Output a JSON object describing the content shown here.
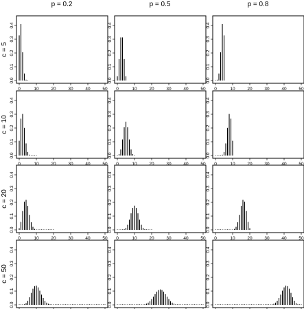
{
  "chart_data": {
    "type": "bar",
    "layout": "grid",
    "columns": [
      "p = 0.2",
      "p = 0.5",
      "p = 0.8"
    ],
    "rows": [
      "c = 5",
      "c = 10",
      "c = 20",
      "c = 50"
    ],
    "p_values": [
      0.2,
      0.5,
      0.8
    ],
    "c_values": [
      5,
      10,
      20,
      50
    ],
    "x_range": [
      0,
      50
    ],
    "y_range": [
      0,
      0.45
    ],
    "x_ticks": [
      0,
      10,
      20,
      30,
      40,
      50
    ],
    "y_ticks": [
      0,
      0.1,
      0.2,
      0.3,
      0.4
    ],
    "x_tick_labels": [
      "0",
      "10",
      "20",
      "30",
      "40",
      "50"
    ],
    "y_tick_labels": [
      "0.0",
      "0.1",
      "0.2",
      "0.3",
      "0.4"
    ],
    "panels": [
      {
        "c": 5,
        "p": 0.2,
        "x": [
          0,
          1,
          2,
          3,
          4,
          5
        ],
        "y": [
          0.328,
          0.41,
          0.205,
          0.051,
          0.006,
          0.0
        ]
      },
      {
        "c": 5,
        "p": 0.5,
        "x": [
          0,
          1,
          2,
          3,
          4,
          5
        ],
        "y": [
          0.031,
          0.156,
          0.313,
          0.313,
          0.156,
          0.031
        ]
      },
      {
        "c": 5,
        "p": 0.8,
        "x": [
          0,
          1,
          2,
          3,
          4,
          5
        ],
        "y": [
          0.0,
          0.006,
          0.051,
          0.205,
          0.41,
          0.328
        ]
      },
      {
        "c": 10,
        "p": 0.2,
        "x": [
          0,
          1,
          2,
          3,
          4,
          5,
          6,
          7,
          8,
          9,
          10
        ],
        "y": [
          0.107,
          0.268,
          0.302,
          0.201,
          0.088,
          0.026,
          0.006,
          0.001,
          0.0,
          0.0,
          0.0
        ]
      },
      {
        "c": 10,
        "p": 0.5,
        "x": [
          0,
          1,
          2,
          3,
          4,
          5,
          6,
          7,
          8,
          9,
          10
        ],
        "y": [
          0.001,
          0.01,
          0.044,
          0.117,
          0.205,
          0.246,
          0.205,
          0.117,
          0.044,
          0.01,
          0.001
        ]
      },
      {
        "c": 10,
        "p": 0.8,
        "x": [
          0,
          1,
          2,
          3,
          4,
          5,
          6,
          7,
          8,
          9,
          10
        ],
        "y": [
          0.0,
          0.0,
          0.0,
          0.001,
          0.006,
          0.026,
          0.088,
          0.201,
          0.302,
          0.268,
          0.107
        ]
      },
      {
        "c": 20,
        "p": 0.2,
        "x": [
          0,
          1,
          2,
          3,
          4,
          5,
          6,
          7,
          8,
          9,
          10,
          11,
          12,
          13,
          14,
          15,
          16,
          17,
          18,
          19,
          20
        ],
        "y": [
          0.012,
          0.058,
          0.137,
          0.205,
          0.218,
          0.175,
          0.109,
          0.055,
          0.022,
          0.007,
          0.002,
          0.0,
          0.0,
          0.0,
          0.0,
          0.0,
          0.0,
          0.0,
          0.0,
          0.0,
          0.0
        ]
      },
      {
        "c": 20,
        "p": 0.5,
        "x": [
          0,
          1,
          2,
          3,
          4,
          5,
          6,
          7,
          8,
          9,
          10,
          11,
          12,
          13,
          14,
          15,
          16,
          17,
          18,
          19,
          20
        ],
        "y": [
          0.0,
          0.0,
          0.0,
          0.001,
          0.005,
          0.015,
          0.037,
          0.074,
          0.12,
          0.16,
          0.176,
          0.16,
          0.12,
          0.074,
          0.037,
          0.015,
          0.005,
          0.001,
          0.0,
          0.0,
          0.0
        ]
      },
      {
        "c": 20,
        "p": 0.8,
        "x": [
          0,
          1,
          2,
          3,
          4,
          5,
          6,
          7,
          8,
          9,
          10,
          11,
          12,
          13,
          14,
          15,
          16,
          17,
          18,
          19,
          20
        ],
        "y": [
          0.0,
          0.0,
          0.0,
          0.0,
          0.0,
          0.0,
          0.0,
          0.0,
          0.0,
          0.0,
          0.002,
          0.007,
          0.022,
          0.055,
          0.109,
          0.175,
          0.218,
          0.205,
          0.137,
          0.058,
          0.012
        ]
      },
      {
        "c": 50,
        "p": 0.2,
        "x": [
          0,
          1,
          2,
          3,
          4,
          5,
          6,
          7,
          8,
          9,
          10,
          11,
          12,
          13,
          14,
          15,
          16,
          17,
          18,
          19,
          20,
          21,
          22,
          23,
          24,
          25,
          26,
          27,
          28,
          29,
          30,
          31,
          32,
          33,
          34,
          35,
          36,
          37,
          38,
          39,
          40,
          41,
          42,
          43,
          44,
          45,
          46,
          47,
          48,
          49,
          50
        ],
        "y": [
          0.0,
          0.0,
          0.001,
          0.004,
          0.013,
          0.03,
          0.055,
          0.087,
          0.117,
          0.136,
          0.14,
          0.127,
          0.103,
          0.075,
          0.05,
          0.03,
          0.016,
          0.008,
          0.004,
          0.002,
          0.001,
          0.0,
          0.0,
          0.0,
          0.0,
          0.0,
          0.0,
          0.0,
          0.0,
          0.0,
          0.0,
          0.0,
          0.0,
          0.0,
          0.0,
          0.0,
          0.0,
          0.0,
          0.0,
          0.0,
          0.0,
          0.0,
          0.0,
          0.0,
          0.0,
          0.0,
          0.0,
          0.0,
          0.0,
          0.0,
          0.0
        ]
      },
      {
        "c": 50,
        "p": 0.5,
        "x": [
          0,
          1,
          2,
          3,
          4,
          5,
          6,
          7,
          8,
          9,
          10,
          11,
          12,
          13,
          14,
          15,
          16,
          17,
          18,
          19,
          20,
          21,
          22,
          23,
          24,
          25,
          26,
          27,
          28,
          29,
          30,
          31,
          32,
          33,
          34,
          35,
          36,
          37,
          38,
          39,
          40,
          41,
          42,
          43,
          44,
          45,
          46,
          47,
          48,
          49,
          50
        ],
        "y": [
          0.0,
          0.0,
          0.0,
          0.0,
          0.0,
          0.0,
          0.0,
          0.0,
          0.0,
          0.0,
          0.0,
          0.0,
          0.0,
          0.0,
          0.0,
          0.002,
          0.004,
          0.009,
          0.016,
          0.027,
          0.042,
          0.06,
          0.079,
          0.096,
          0.108,
          0.112,
          0.108,
          0.096,
          0.079,
          0.06,
          0.042,
          0.027,
          0.016,
          0.009,
          0.004,
          0.002,
          0.0,
          0.0,
          0.0,
          0.0,
          0.0,
          0.0,
          0.0,
          0.0,
          0.0,
          0.0,
          0.0,
          0.0,
          0.0,
          0.0,
          0.0
        ]
      },
      {
        "c": 50,
        "p": 0.8,
        "x": [
          0,
          1,
          2,
          3,
          4,
          5,
          6,
          7,
          8,
          9,
          10,
          11,
          12,
          13,
          14,
          15,
          16,
          17,
          18,
          19,
          20,
          21,
          22,
          23,
          24,
          25,
          26,
          27,
          28,
          29,
          30,
          31,
          32,
          33,
          34,
          35,
          36,
          37,
          38,
          39,
          40,
          41,
          42,
          43,
          44,
          45,
          46,
          47,
          48,
          49,
          50
        ],
        "y": [
          0.0,
          0.0,
          0.0,
          0.0,
          0.0,
          0.0,
          0.0,
          0.0,
          0.0,
          0.0,
          0.0,
          0.0,
          0.0,
          0.0,
          0.0,
          0.0,
          0.0,
          0.0,
          0.0,
          0.0,
          0.0,
          0.0,
          0.0,
          0.0,
          0.0,
          0.0,
          0.0,
          0.0,
          0.0,
          0.0,
          0.0,
          0.001,
          0.002,
          0.004,
          0.008,
          0.016,
          0.03,
          0.05,
          0.075,
          0.103,
          0.127,
          0.14,
          0.136,
          0.117,
          0.087,
          0.055,
          0.03,
          0.013,
          0.004,
          0.001,
          0.0
        ]
      }
    ]
  }
}
